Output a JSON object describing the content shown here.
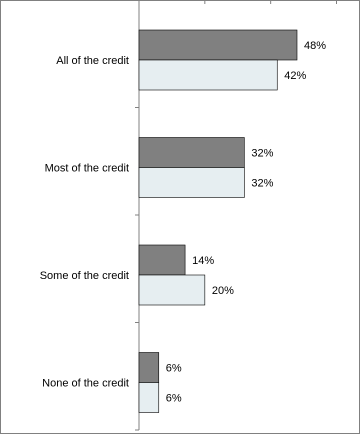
{
  "chart_data": {
    "type": "bar",
    "orientation": "horizontal",
    "title": "",
    "xlabel": "",
    "ylabel": "",
    "categories": [
      "All of the credit",
      "Most of the credit",
      "Some of the credit",
      "None of the credit"
    ],
    "series": [
      {
        "values": [
          48,
          32,
          14,
          6
        ],
        "labels": [
          "48%",
          "32%",
          "14%",
          "6%"
        ],
        "color": "#808080"
      },
      {
        "values": [
          42,
          32,
          20,
          6
        ],
        "labels": [
          "42%",
          "32%",
          "20%",
          "6%"
        ],
        "color": "#e6eef1"
      }
    ],
    "xlim": [
      0,
      60
    ],
    "grid": false,
    "legend": "none",
    "axis_color": "#808080",
    "bar_border_color": "#000000"
  }
}
